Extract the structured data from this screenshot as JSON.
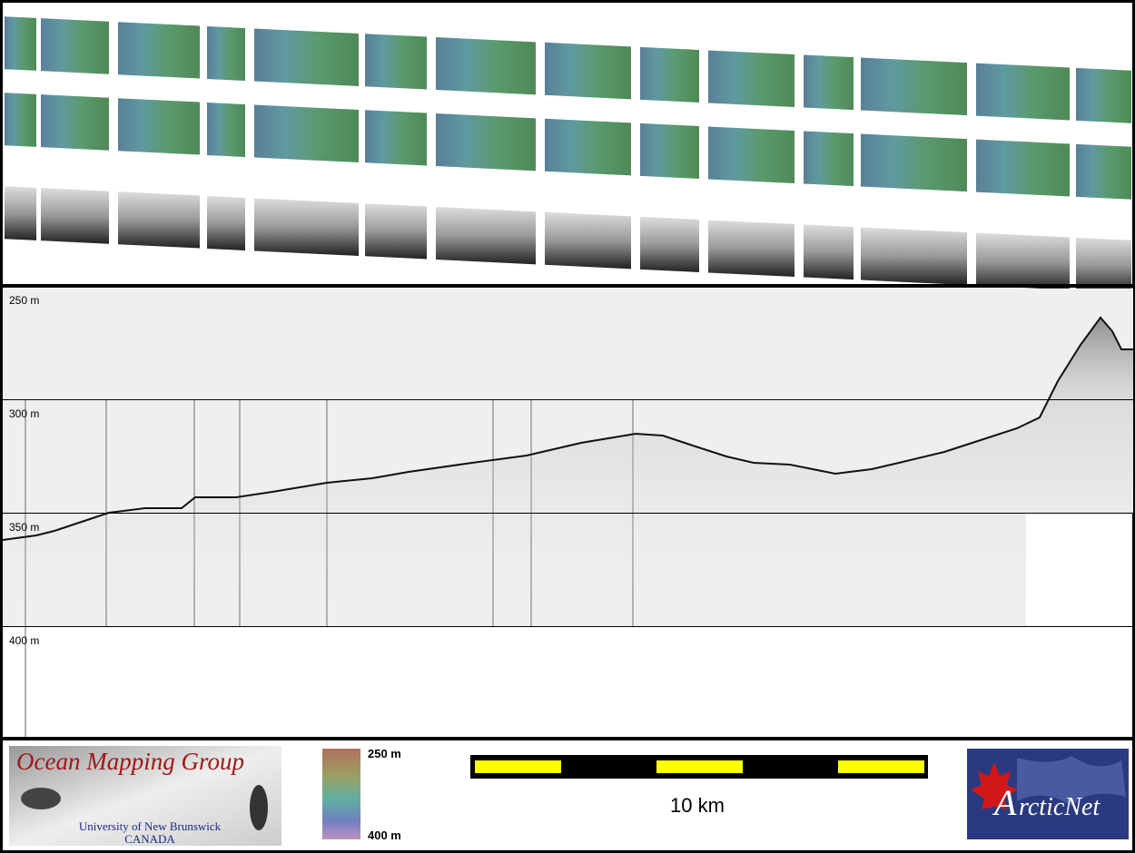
{
  "profile": {
    "depth_labels": [
      "250 m",
      "300 m",
      "350 m",
      "400 m"
    ]
  },
  "logo_left": {
    "title": "Ocean Mapping Group",
    "line1": "University of New Brunswick",
    "line2": "CANADA"
  },
  "colorbar": {
    "top_label": "250 m",
    "bottom_label": "400 m"
  },
  "scale_bar": {
    "label": "10 km"
  },
  "logo_right": {
    "initial": "A",
    "rest": "rcticNet"
  }
}
